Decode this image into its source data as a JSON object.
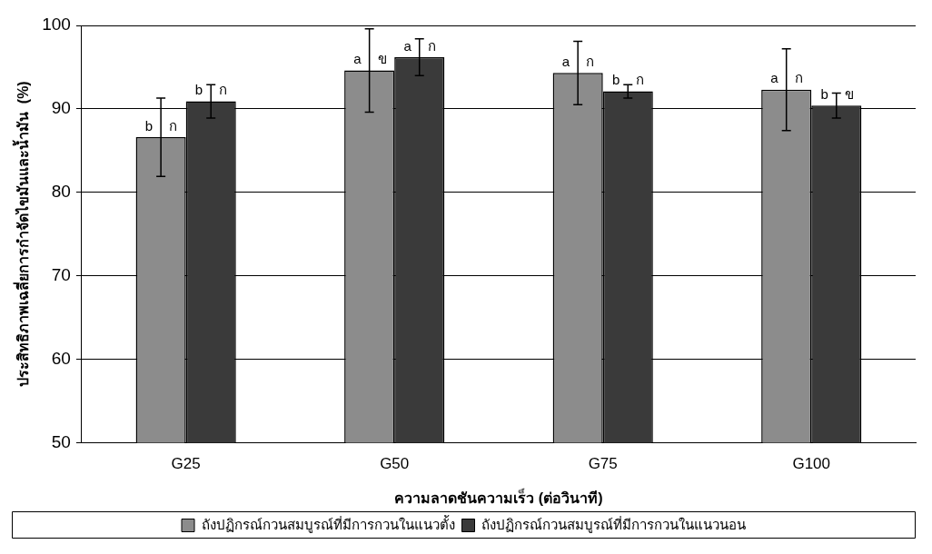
{
  "chart_data": {
    "type": "bar",
    "xlabel": "ความลาดชันความเร็ว (ต่อวินาที)",
    "ylabel": "ประสิทธิภาพเฉลี่ยการกำจัดไขมันและน้ำมัน  (%)",
    "categories": [
      "G25",
      "G50",
      "G75",
      "G100"
    ],
    "series": [
      {
        "name": "ถังปฏิกรณ์กวนสมบูรณ์ที่มีการกวนในแนวตั้ง",
        "color": "#8c8c8c",
        "values": [
          86.6,
          94.6,
          94.3,
          92.3
        ],
        "errors": [
          4.7,
          5.0,
          3.8,
          4.9
        ],
        "value_labels": [
          "b ก",
          "a ข",
          "a ก",
          "a ก"
        ]
      },
      {
        "name": "ถังปฏิกรณ์กวนสมบูรณ์ที่มีการกวนในแนวนอน",
        "color": "#3a3a3a",
        "values": [
          90.9,
          96.2,
          92.1,
          90.4
        ],
        "errors": [
          2.0,
          2.2,
          0.8,
          1.5
        ],
        "value_labels": [
          "b ก",
          "a ก",
          "b ก",
          "b ข"
        ]
      }
    ],
    "ylim": [
      50,
      100
    ],
    "yticks": [
      50,
      60,
      70,
      80,
      90,
      100
    ],
    "grid": "y",
    "legend": "bottom"
  }
}
